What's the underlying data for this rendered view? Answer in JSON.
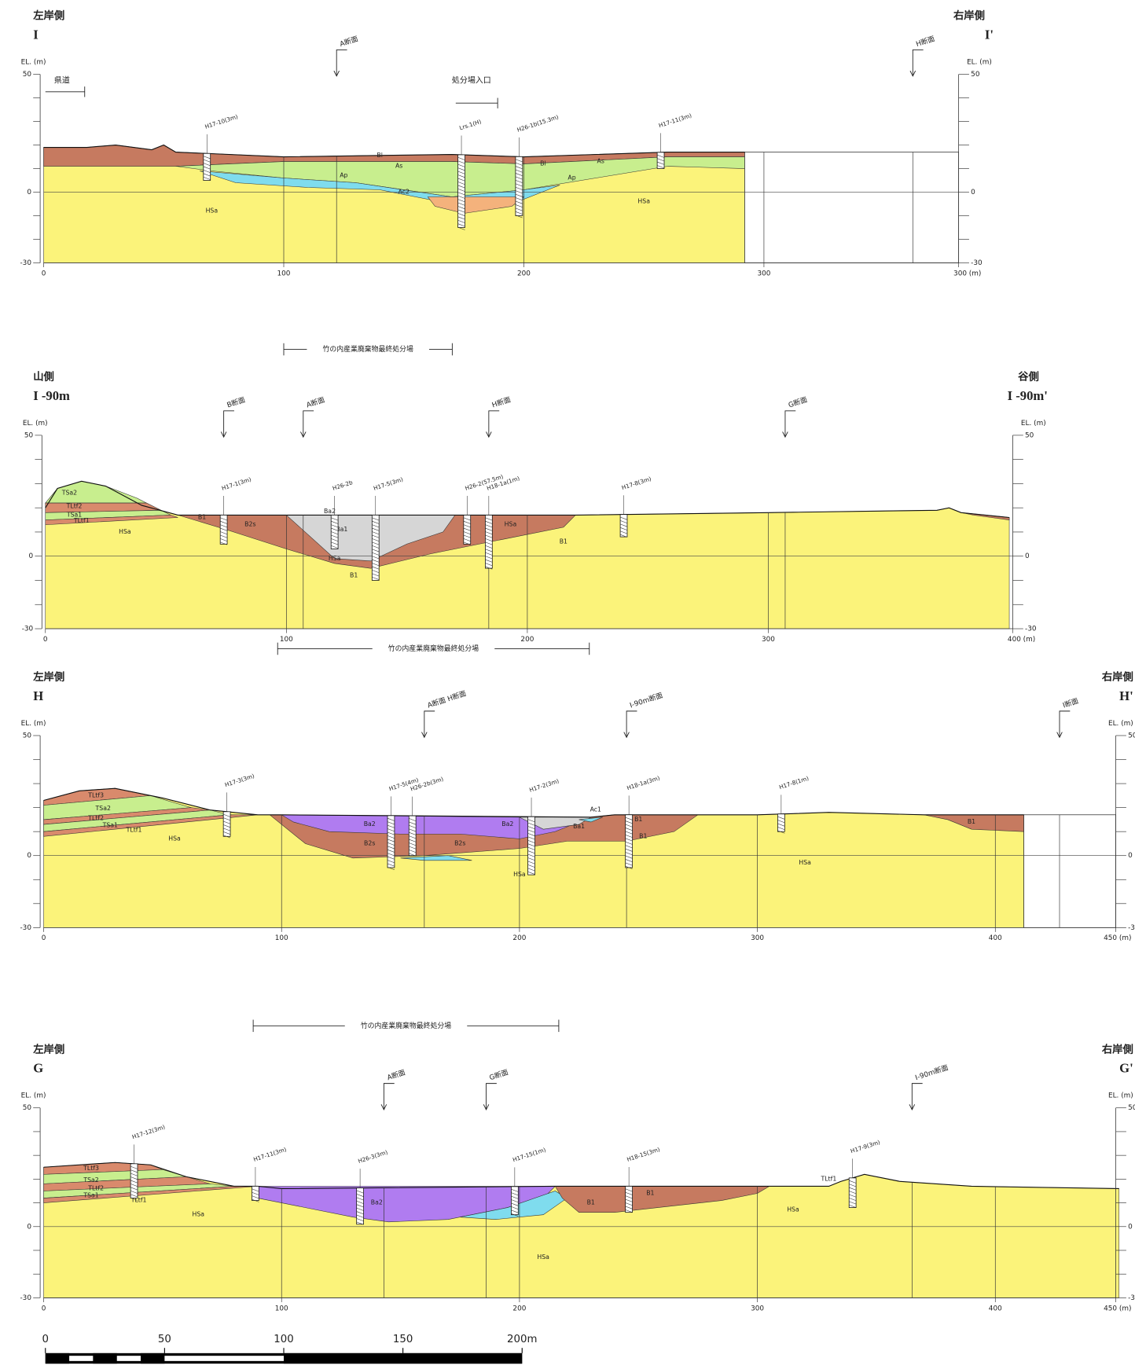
{
  "sections": [
    {
      "left_side": "左岸側",
      "left_id": "I",
      "right_side": "右岸側",
      "right_id": "I'",
      "el_label": "EL. (m)",
      "y_labels": [
        "50",
        "0",
        "-30"
      ],
      "x_labels": [
        "0",
        "100",
        "200",
        "300",
        "300 (m)"
      ],
      "cross_sections": [
        "A断面",
        "H断面"
      ],
      "notes": [
        "県道",
        "処分場入口"
      ],
      "geology": [
        "Bl",
        "As",
        "Ap",
        "Ac2",
        "HSa",
        "Bl",
        "Ap",
        "As",
        "HSa"
      ],
      "boreholes": [
        "H17-10(3m)",
        "Lrs.1(H)",
        "H26-1b(15.3m)",
        "H17-11(3m)"
      ]
    },
    {
      "left_side": "山側",
      "left_id": "I -90m",
      "right_side": "谷側",
      "right_id": "I -90m'",
      "el_label": "EL. (m)",
      "y_labels": [
        "50",
        "0",
        "-30"
      ],
      "x_labels": [
        "0",
        "100",
        "200",
        "300",
        "400 (m)"
      ],
      "cross_sections": [
        "B断面",
        "A断面",
        "H断面",
        "G断面"
      ],
      "notes": [],
      "geology": [
        "TSa2",
        "TLtf2",
        "TSa1",
        "TLtf1",
        "HSa",
        "B1",
        "B2s",
        "Ba2",
        "Ba1",
        "HSa",
        "B1",
        "HSa",
        "B1"
      ],
      "boreholes": [
        "H17-1(3m)",
        "H26-2b",
        "H17-5(3m)",
        "H26-2(57.5m)",
        "H18-1a(1m)",
        "H17-8(3m)"
      ]
    },
    {
      "left_side": "左岸側",
      "left_id": "H",
      "right_side": "右岸側",
      "right_id": "H'",
      "el_label": "EL. (m)",
      "y_labels": [
        "50",
        "0",
        "-30"
      ],
      "x_labels": [
        "0",
        "100",
        "200",
        "300",
        "400",
        "450 (m)"
      ],
      "cross_sections": [
        "A断面 H断面",
        "I-90m断面",
        "I断面"
      ],
      "notes": [],
      "geology": [
        "TLtf3",
        "TSa2",
        "TLtf2",
        "TSa1",
        "TLtf1",
        "HSa",
        "Ba2",
        "B2s",
        "B2s",
        "Ba2",
        "Ba1",
        "Ac1",
        "B1",
        "B1",
        "HSa",
        "HSa",
        "B1"
      ],
      "boreholes": [
        "H17-3(3m)",
        "H17-5(4m)",
        "H26-2b(3m)",
        "H17-2(3m)",
        "H18-1a(3m)",
        "H17-8(1m)"
      ]
    },
    {
      "left_side": "左岸側",
      "left_id": "G",
      "right_side": "右岸側",
      "right_id": "G'",
      "el_label": "EL. (m)",
      "y_labels": [
        "50",
        "0",
        "-30"
      ],
      "x_labels": [
        "0",
        "100",
        "200",
        "300",
        "400",
        "450 (m)"
      ],
      "cross_sections": [
        "A断面",
        "G断面",
        "I-90m断面"
      ],
      "notes": [],
      "geology": [
        "TLtf3",
        "TSa2",
        "TLtf2",
        "TSa1",
        "TLtf1",
        "HSa",
        "Ba2",
        "HSa",
        "B1",
        "B1",
        "HSa",
        "TLtf1"
      ],
      "boreholes": [
        "H17-12(3m)",
        "H17-11(3m)",
        "H26-3(3m)",
        "H17-15(1m)",
        "H18-15(3m)",
        "H17-9(3m)"
      ]
    }
  ],
  "site_labels": [
    "竹の内産業廃棄物最終処分場",
    "竹の内産業廃棄物最終処分場",
    "竹の内産業廃棄物最終処分場"
  ],
  "scale_bar": {
    "labels": [
      "0",
      "50",
      "100",
      "150",
      "200m"
    ]
  }
}
